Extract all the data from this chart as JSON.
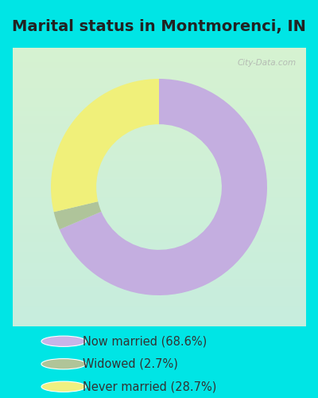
{
  "title": "Marital status in Montmorenci, IN",
  "slices": [
    68.6,
    2.7,
    28.7
  ],
  "colors": [
    "#c4aee0",
    "#afc49a",
    "#f0f07a"
  ],
  "labels": [
    "Now married (68.6%)",
    "Widowed (2.7%)",
    "Never married (28.7%)"
  ],
  "legend_colors": [
    "#c9b4e8",
    "#b0c498",
    "#f0f080"
  ],
  "bg_outer": "#00e5e5",
  "bg_panel_top": "#cce8e0",
  "bg_panel_bottom": "#d8f0d0",
  "watermark": "City-Data.com",
  "donut_width": 0.42,
  "title_fontsize": 14,
  "legend_fontsize": 10.5,
  "title_color": "#222222",
  "legend_text_color": "#333333"
}
